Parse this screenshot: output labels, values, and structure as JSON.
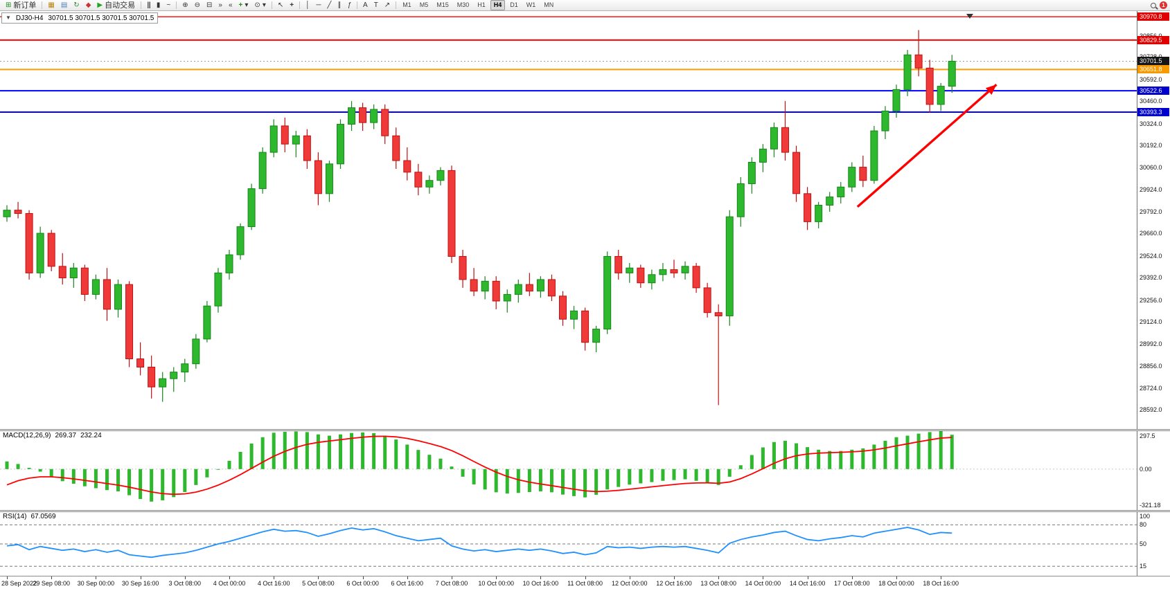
{
  "toolbar": {
    "new_order_label": "新订单",
    "auto_trading_label": "自动交易",
    "timeframe_labels": [
      "M1",
      "M5",
      "M15",
      "M30",
      "H1",
      "H4",
      "D1",
      "W1",
      "MN"
    ],
    "active_timeframe": "H4",
    "notification_count": "1"
  },
  "icons": {
    "new_order": "⊞",
    "profiles": "▦",
    "market_watch": "▤",
    "refresh": "↻",
    "favorites": "◆",
    "auto_play": "▶",
    "bar_chart": "|||",
    "candle_chart": "▮",
    "line_chart": "~",
    "zoom_in": "⊕",
    "zoom_out": "⊖",
    "tile_windows": "⊟",
    "auto_scroll": "»",
    "chart_shift": "«",
    "indicators": "+",
    "clock": "⊙",
    "cursor": "↖",
    "crosshair": "+",
    "vline": "│",
    "hline": "─",
    "trendline": "╱",
    "channel": "∥",
    "fibonacci": "ƒ",
    "text": "A",
    "text_label": "T",
    "arrow_tool": "↗",
    "dropdown": "▾",
    "title_marker": "▼"
  },
  "main_chart": {
    "title": "DJ30-H4",
    "ohlc_text": "30701.5 30701.5 30701.5 30701.5",
    "current_price": 30701.5,
    "price_axis_plain": [
      30856,
      30728,
      30592,
      30460,
      30324,
      30192,
      30060,
      29924,
      29792,
      29660,
      29524,
      29392,
      29256,
      29124,
      28992,
      28856,
      28724,
      28592
    ],
    "price_chips": [
      {
        "value": "30970.8",
        "price": 30970.8,
        "bg": "#e00000"
      },
      {
        "value": "30829.5",
        "price": 30829.5,
        "bg": "#e00000"
      },
      {
        "value": "30701.5",
        "price": 30701.5,
        "bg": "#151515"
      },
      {
        "value": "30651.8",
        "price": 30651.8,
        "bg": "#f79900"
      },
      {
        "value": "30522.6",
        "price": 30522.6,
        "bg": "#0000cc"
      },
      {
        "value": "30393.3",
        "price": 30393.3,
        "bg": "#0000cc"
      }
    ],
    "hlines": [
      {
        "price": 30970.8,
        "color": "#ff0000",
        "width": 1.4,
        "style": "solid"
      },
      {
        "price": 30829.5,
        "color": "#ff0000",
        "width": 2,
        "style": "solid"
      },
      {
        "price": 30701.5,
        "color": "#9a9a9a",
        "width": 1,
        "style": "dotted"
      },
      {
        "price": 30651.8,
        "color": "#ff9c00",
        "width": 2,
        "style": "solid"
      },
      {
        "price": 30522.6,
        "color": "#0000ff",
        "width": 2,
        "style": "solid"
      },
      {
        "price": 30393.3,
        "color": "#0000ff",
        "width": 2,
        "style": "solid"
      }
    ]
  },
  "macd_panel": {
    "label": "MACD(12,26,9)",
    "macd_value": "269.37",
    "signal_value": "232.24",
    "axis_labels": [
      "297.5",
      "0.00",
      "-321.18"
    ]
  },
  "rsi_panel": {
    "label": "RSI(14)",
    "value": "67.0569",
    "axis_labels": [
      "100",
      "80",
      "50",
      "15"
    ],
    "levels": [
      80,
      50,
      15
    ]
  },
  "time_axis": {
    "bars_per_label": 4,
    "labels": [
      "28 Sep 2022",
      "29 Sep 08:00",
      "30 Sep 00:00",
      "30 Sep 16:00",
      "3 Oct 08:00",
      "4 Oct 00:00",
      "4 Oct 16:00",
      "5 Oct 08:00",
      "6 Oct 00:00",
      "6 Oct 16:00",
      "7 Oct 08:00",
      "10 Oct 00:00",
      "10 Oct 16:00",
      "11 Oct 08:00",
      "12 Oct 00:00",
      "12 Oct 16:00",
      "13 Oct 08:00",
      "14 Oct 00:00",
      "14 Oct 16:00",
      "17 Oct 08:00",
      "18 Oct 00:00",
      "18 Oct 16:00"
    ]
  },
  "colors": {
    "bull": "#2eb82e",
    "bull_stroke": "#17861b",
    "bear": "#f03a3a",
    "bear_stroke": "#bf1111",
    "macd_bar": "#2eb82e",
    "macd_signal": "#ff0000",
    "rsi_line": "#1e90ff",
    "arrow": "#ff0000",
    "level_red": "#ff0000",
    "level_orange": "#ff9c00",
    "level_blue": "#0000ff"
  },
  "chart_data": [
    {
      "type": "candlestick",
      "symbol": "DJ30",
      "timeframe": "H4",
      "ylim": [
        28475,
        31005
      ],
      "candles_ohlc": [
        [
          29760,
          29830,
          29730,
          29800
        ],
        [
          29800,
          29850,
          29750,
          29780
        ],
        [
          29780,
          29800,
          29380,
          29420
        ],
        [
          29420,
          29700,
          29390,
          29660
        ],
        [
          29660,
          29680,
          29430,
          29460
        ],
        [
          29460,
          29540,
          29350,
          29390
        ],
        [
          29390,
          29480,
          29330,
          29450
        ],
        [
          29450,
          29470,
          29250,
          29290
        ],
        [
          29290,
          29410,
          29260,
          29380
        ],
        [
          29380,
          29450,
          29130,
          29200
        ],
        [
          29200,
          29380,
          29150,
          29350
        ],
        [
          29350,
          29370,
          28850,
          28900
        ],
        [
          28900,
          29000,
          28800,
          28850
        ],
        [
          28850,
          28920,
          28660,
          28730
        ],
        [
          28730,
          28820,
          28640,
          28780
        ],
        [
          28780,
          28850,
          28700,
          28820
        ],
        [
          28820,
          28900,
          28760,
          28870
        ],
        [
          28870,
          29050,
          28840,
          29020
        ],
        [
          29020,
          29250,
          29000,
          29220
        ],
        [
          29220,
          29450,
          29180,
          29420
        ],
        [
          29420,
          29560,
          29380,
          29530
        ],
        [
          29530,
          29720,
          29500,
          29700
        ],
        [
          29700,
          29960,
          29680,
          29930
        ],
        [
          29930,
          30180,
          29900,
          30150
        ],
        [
          30150,
          30350,
          30120,
          30310
        ],
        [
          30310,
          30360,
          30150,
          30200
        ],
        [
          30200,
          30280,
          30120,
          30250
        ],
        [
          30250,
          30290,
          30050,
          30100
        ],
        [
          30100,
          30150,
          29830,
          29900
        ],
        [
          29900,
          30100,
          29850,
          30080
        ],
        [
          30080,
          30350,
          30050,
          30320
        ],
        [
          30320,
          30460,
          30280,
          30420
        ],
        [
          30420,
          30450,
          30280,
          30330
        ],
        [
          30330,
          30440,
          30290,
          30410
        ],
        [
          30410,
          30440,
          30200,
          30250
        ],
        [
          30250,
          30300,
          30050,
          30100
        ],
        [
          30100,
          30180,
          29980,
          30030
        ],
        [
          30030,
          30080,
          29890,
          29940
        ],
        [
          29940,
          30010,
          29900,
          29980
        ],
        [
          29980,
          30060,
          29950,
          30040
        ],
        [
          30040,
          30070,
          29480,
          29520
        ],
        [
          29520,
          29560,
          29330,
          29380
        ],
        [
          29380,
          29450,
          29280,
          29310
        ],
        [
          29310,
          29400,
          29260,
          29370
        ],
        [
          29370,
          29400,
          29200,
          29250
        ],
        [
          29250,
          29320,
          29180,
          29290
        ],
        [
          29290,
          29380,
          29240,
          29350
        ],
        [
          29350,
          29420,
          29280,
          29310
        ],
        [
          29310,
          29400,
          29270,
          29380
        ],
        [
          29380,
          29410,
          29250,
          29280
        ],
        [
          29280,
          29310,
          29100,
          29140
        ],
        [
          29140,
          29220,
          29080,
          29190
        ],
        [
          29190,
          29210,
          28950,
          29000
        ],
        [
          29000,
          29100,
          28940,
          29080
        ],
        [
          29080,
          29550,
          29050,
          29520
        ],
        [
          29520,
          29560,
          29380,
          29420
        ],
        [
          29420,
          29480,
          29360,
          29450
        ],
        [
          29450,
          29470,
          29330,
          29360
        ],
        [
          29360,
          29440,
          29320,
          29410
        ],
        [
          29410,
          29480,
          29370,
          29440
        ],
        [
          29440,
          29500,
          29390,
          29420
        ],
        [
          29420,
          29490,
          29380,
          29460
        ],
        [
          29460,
          29480,
          29300,
          29330
        ],
        [
          29330,
          29360,
          29150,
          29180
        ],
        [
          29180,
          29230,
          28620,
          29160
        ],
        [
          29160,
          29800,
          29100,
          29760
        ],
        [
          29760,
          30000,
          29700,
          29960
        ],
        [
          29960,
          30120,
          29900,
          30090
        ],
        [
          30090,
          30200,
          30030,
          30170
        ],
        [
          30170,
          30330,
          30120,
          30300
        ],
        [
          30300,
          30460,
          30100,
          30150
        ],
        [
          30150,
          30190,
          29850,
          29900
        ],
        [
          29900,
          29940,
          29680,
          29730
        ],
        [
          29730,
          29850,
          29690,
          29830
        ],
        [
          29830,
          29910,
          29790,
          29880
        ],
        [
          29880,
          29970,
          29840,
          29940
        ],
        [
          29940,
          30090,
          29910,
          30060
        ],
        [
          30060,
          30130,
          29940,
          29980
        ],
        [
          29980,
          30310,
          29960,
          30280
        ],
        [
          30280,
          30430,
          30230,
          30400
        ],
        [
          30400,
          30560,
          30360,
          30530
        ],
        [
          30530,
          30770,
          30490,
          30740
        ],
        [
          30740,
          30890,
          30610,
          30660
        ],
        [
          30660,
          30710,
          30390,
          30440
        ],
        [
          30440,
          30570,
          30400,
          30550
        ],
        [
          30550,
          30740,
          30510,
          30701.5
        ]
      ],
      "annotations": [
        {
          "type": "arrow",
          "from_bar": 76.5,
          "from_price": 29820,
          "to_bar": 89,
          "to_price": 30560,
          "color": "#ff0000"
        }
      ]
    },
    {
      "type": "bar",
      "name": "MACD histogram",
      "params": "12,26,9",
      "ylim": [
        -321.18,
        297.5
      ],
      "signal_start": -170,
      "values": [
        60,
        40,
        10,
        -20,
        -60,
        -95,
        -115,
        -135,
        -150,
        -165,
        -175,
        -205,
        -235,
        -255,
        -245,
        -220,
        -180,
        -125,
        -65,
        0,
        65,
        135,
        200,
        250,
        285,
        292,
        295,
        290,
        272,
        262,
        272,
        283,
        287,
        282,
        262,
        232,
        192,
        150,
        112,
        82,
        20,
        -60,
        -120,
        -160,
        -182,
        -192,
        -187,
        -180,
        -175,
        -182,
        -200,
        -212,
        -222,
        -202,
        -160,
        -140,
        -122,
        -112,
        -102,
        -92,
        -86,
        -80,
        -92,
        -105,
        -125,
        -60,
        30,
        110,
        170,
        212,
        222,
        202,
        172,
        152,
        142,
        142,
        152,
        162,
        192,
        222,
        250,
        262,
        278,
        290,
        297.5,
        269.37
      ]
    },
    {
      "type": "line",
      "name": "RSI 14",
      "ylim": [
        0,
        100
      ],
      "values": [
        47,
        49,
        41,
        46,
        43,
        40,
        42,
        38,
        41,
        37,
        40,
        33,
        31,
        29,
        32,
        34,
        36,
        40,
        45,
        50,
        54,
        59,
        64,
        69,
        73,
        70,
        71,
        68,
        62,
        66,
        71,
        75,
        72,
        74,
        69,
        63,
        59,
        55,
        57,
        59,
        47,
        42,
        39,
        41,
        38,
        40,
        42,
        40,
        42,
        39,
        35,
        37,
        33,
        36,
        46,
        44,
        45,
        43,
        45,
        46,
        45,
        46,
        43,
        40,
        36,
        51,
        57,
        61,
        64,
        68,
        70,
        63,
        57,
        55,
        58,
        60,
        63,
        61,
        67,
        70,
        73,
        76,
        72,
        65,
        68,
        67.06
      ]
    }
  ]
}
